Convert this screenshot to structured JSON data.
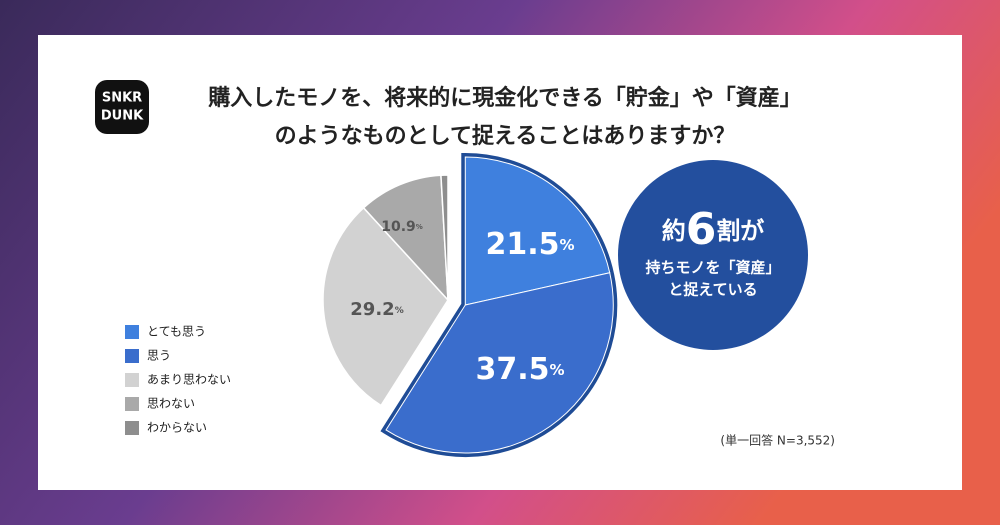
{
  "logo": [
    "SNKR",
    "DUNK"
  ],
  "callout": [
    "約6割が",
    "持ちモノを「資産」",
    "と捉えている"
  ],
  "chart_data": {
    "type": "pie",
    "title": [
      "購入したモノを、将来的に現金化できる「貯金」や「資産」",
      "のようなものとして捉えることはありますか？"
    ],
    "categories": [
      "とても思う",
      "思う",
      "あまり思わない",
      "思わない",
      "わからない"
    ],
    "values": [
      21.5,
      37.5,
      29.2,
      10.9,
      0.9
    ],
    "value_labels": [
      "21.5%",
      "37.5%",
      "29.2%",
      "10.9%",
      null
    ],
    "colors": [
      "#3f80de",
      "#3a6dcc",
      "#d2d2d2",
      "#a9a9a9",
      "#8e8e8e"
    ],
    "note": "(単一回答 N=3,552)"
  }
}
